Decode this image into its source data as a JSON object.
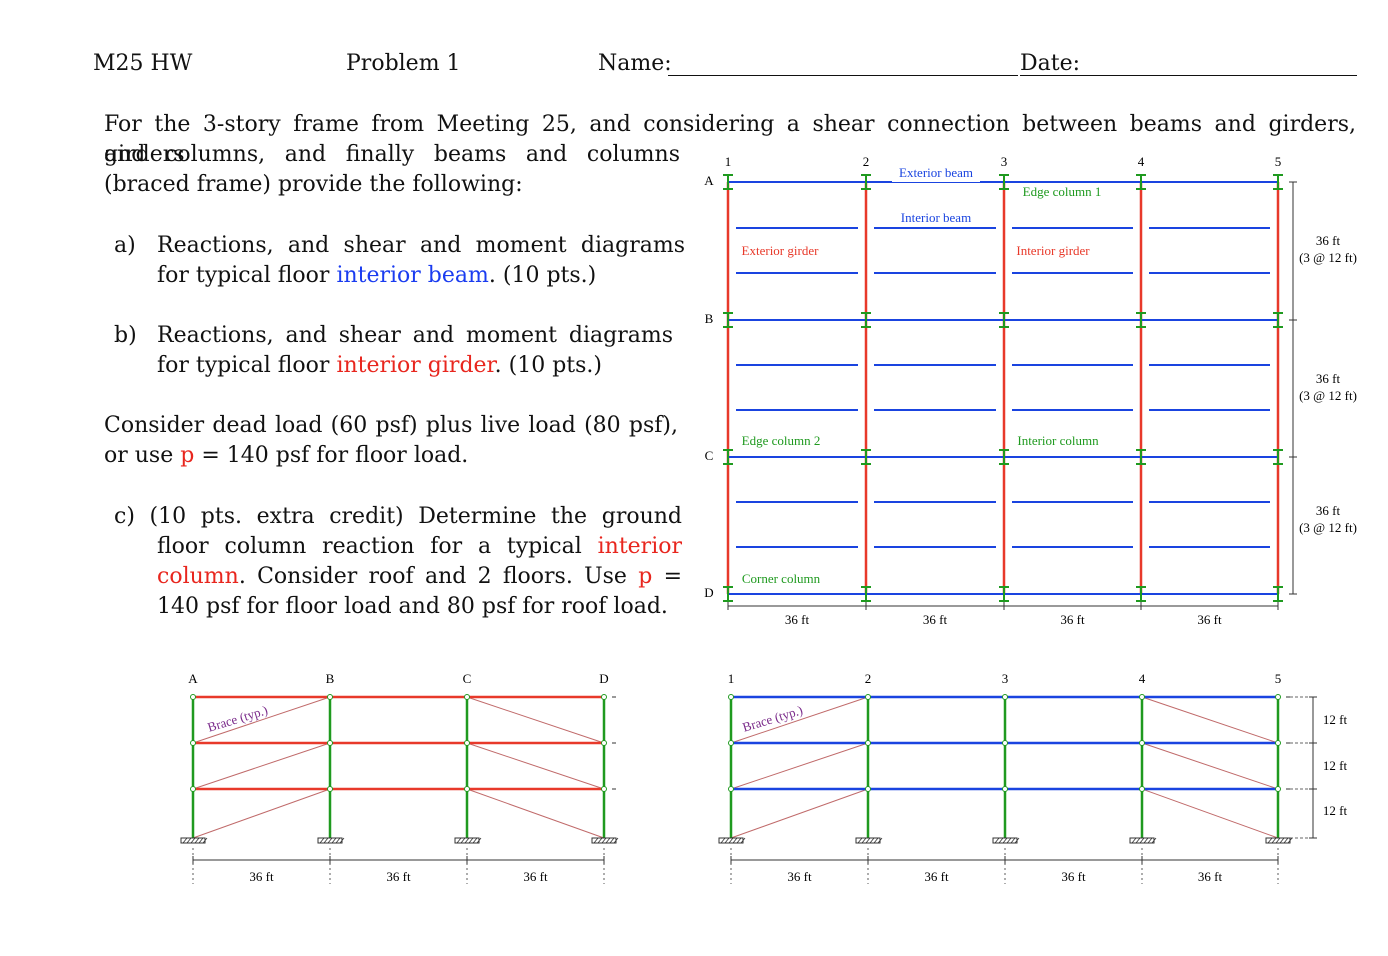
{
  "header": {
    "course": "M25 HW",
    "problem": "Problem 1",
    "name_label": "Name:",
    "date_label": "Date:"
  },
  "intro": [
    "For the 3-story frame from Meeting 25, and considering a shear connection between beams and girders, girders",
    "and columns, and finally beams and columns (braced frame) provide the following:"
  ],
  "questions": [
    {
      "label": "a)",
      "parts": [
        "Reactions, and shear and moment diagrams for typical floor ",
        "interior beam",
        ". (10 pts.)"
      ]
    },
    {
      "label": "b)",
      "parts": [
        "Reactions, and shear and moment diagrams for typical floor ",
        "interior girder",
        ". (10 pts.)"
      ]
    }
  ],
  "load_note": [
    "Consider dead load (60 psf) plus live load (80 psf), or use ",
    "p",
    " = 140 psf for floor load."
  ],
  "extra_credit": [
    "c) (10 pts. extra credit) Determine the ground floor column reaction for a typical ",
    "interior column",
    ". Consider roof and 2 floors. Use ",
    "p",
    " = 140 psf for floor load and 80 psf for roof load."
  ],
  "plan": {
    "column_lines": [
      "1",
      "2",
      "3",
      "4",
      "5"
    ],
    "rows": [
      "A",
      "B",
      "C",
      "D"
    ],
    "labels": {
      "exterior_beam": "Exterior beam",
      "edge_column_1": "Edge column 1",
      "interior_beam": "Interior beam",
      "exterior_girder": "Exterior girder",
      "interior_girder": "Interior girder",
      "edge_column_2": "Edge column 2",
      "interior_column": "Interior column",
      "corner_column": "Corner column"
    },
    "bay_dims": [
      "36 ft",
      "36 ft",
      "36 ft",
      "36 ft"
    ],
    "height_dims": [
      {
        "total": "36 ft",
        "detail": "(3 @ 12 ft)"
      },
      {
        "total": "36 ft",
        "detail": "(3 @ 12 ft)"
      },
      {
        "total": "36 ft",
        "detail": "(3 @ 12 ft)"
      }
    ]
  },
  "elevation_lettered": {
    "column_lines": [
      "A",
      "B",
      "C",
      "D"
    ],
    "brace_label": "Brace (typ.)",
    "bay_dims": [
      "36 ft",
      "36 ft",
      "36 ft"
    ]
  },
  "elevation_numbered": {
    "column_lines": [
      "1",
      "2",
      "3",
      "4",
      "5"
    ],
    "brace_label": "Brace (typ.)",
    "bay_dims": [
      "36 ft",
      "36 ft",
      "36 ft",
      "36 ft"
    ],
    "story_dims": [
      "12 ft",
      "12 ft",
      "12 ft"
    ]
  }
}
